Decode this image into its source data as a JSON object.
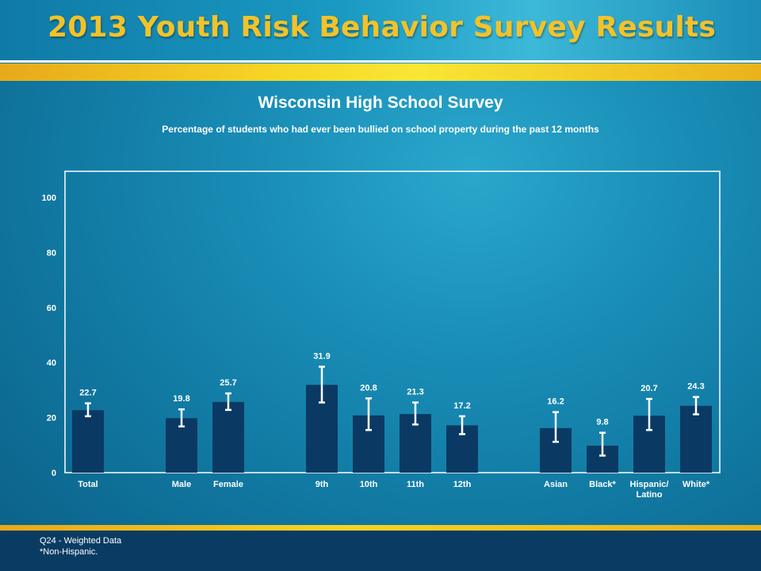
{
  "header": {
    "title": "2013 Youth Risk Behavior Survey Results"
  },
  "chart_data": {
    "type": "bar",
    "title": "Wisconsin High School Survey",
    "subtitle": "Percentage of students who had ever been bullied on school property during the past 12 months",
    "xlabel": "",
    "ylabel": "",
    "ylim": [
      0,
      100
    ],
    "yticks": [
      "0",
      "20",
      "40",
      "60",
      "80",
      "100"
    ],
    "grid": false,
    "error_bars": true,
    "categories": [
      "Total",
      "Male",
      "Female",
      "9th",
      "10th",
      "11th",
      "12th",
      "Asian",
      "Black*",
      "Hispanic/ Latino",
      "White*"
    ],
    "category_lines": [
      [
        "Total"
      ],
      [
        "Male"
      ],
      [
        "Female"
      ],
      [
        "9th"
      ],
      [
        "10th"
      ],
      [
        "11th"
      ],
      [
        "12th"
      ],
      [
        "Asian"
      ],
      [
        "Black*"
      ],
      [
        "Hispanic/",
        "Latino"
      ],
      [
        "White*"
      ]
    ],
    "groups": [
      1,
      2,
      4,
      4
    ],
    "values": [
      22.7,
      19.8,
      25.7,
      31.9,
      20.8,
      21.3,
      17.2,
      16.2,
      9.8,
      20.7,
      24.3
    ],
    "ci_low": [
      20.5,
      16.8,
      22.8,
      25.5,
      15.5,
      17.5,
      14.0,
      11.2,
      6.2,
      15.5,
      21.2
    ],
    "ci_high": [
      25.2,
      23.0,
      28.8,
      38.5,
      27.0,
      25.5,
      20.5,
      22.0,
      14.5,
      26.8,
      27.5
    ],
    "bar_color": "#0a3a63",
    "error_bar_color": "#ffffff"
  },
  "footnotes": {
    "line1": "Q24 - Weighted Data",
    "line2": "*Non-Hispanic."
  }
}
